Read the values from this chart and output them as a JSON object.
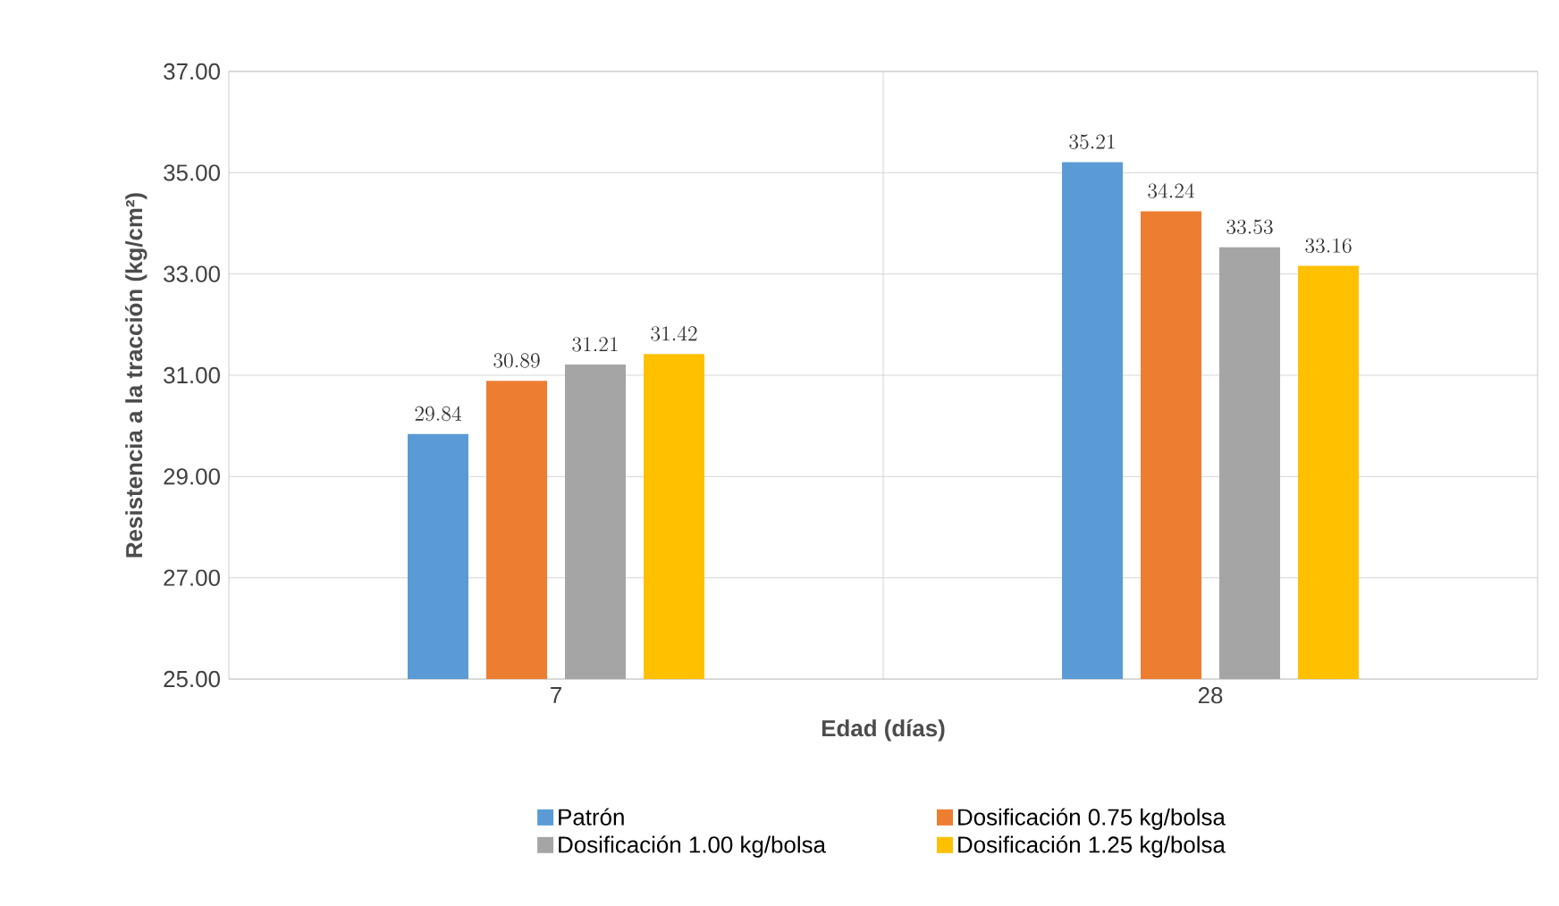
{
  "chart_data": {
    "type": "bar",
    "xlabel": "Edad (días)",
    "ylabel": "Resistencia a la tracción (kg/cm²)",
    "categories": [
      "7",
      "28"
    ],
    "series": [
      {
        "name": "Patrón",
        "color": "#5b9bd5",
        "values": [
          29.84,
          35.21
        ]
      },
      {
        "name": "Dosificación 0.75 kg/bolsa",
        "color": "#ed7d31",
        "values": [
          30.89,
          34.24
        ]
      },
      {
        "name": "Dosificación 1.00 kg/bolsa",
        "color": "#a5a5a5",
        "values": [
          31.21,
          33.53
        ]
      },
      {
        "name": "Dosificación 1.25 kg/bolsa",
        "color": "#ffc000",
        "values": [
          31.42,
          33.16
        ]
      }
    ],
    "ylim": [
      25,
      37
    ],
    "yticks": [
      {
        "value": 25,
        "label": "25.00"
      },
      {
        "value": 27,
        "label": "27.00"
      },
      {
        "value": 29,
        "label": "29.00"
      },
      {
        "value": 31,
        "label": "31.00"
      },
      {
        "value": 33,
        "label": "33.00"
      },
      {
        "value": 35,
        "label": "35.00"
      },
      {
        "value": 37,
        "label": "37.00"
      }
    ],
    "grid": true,
    "legend": "bottom",
    "data_labels": true
  }
}
